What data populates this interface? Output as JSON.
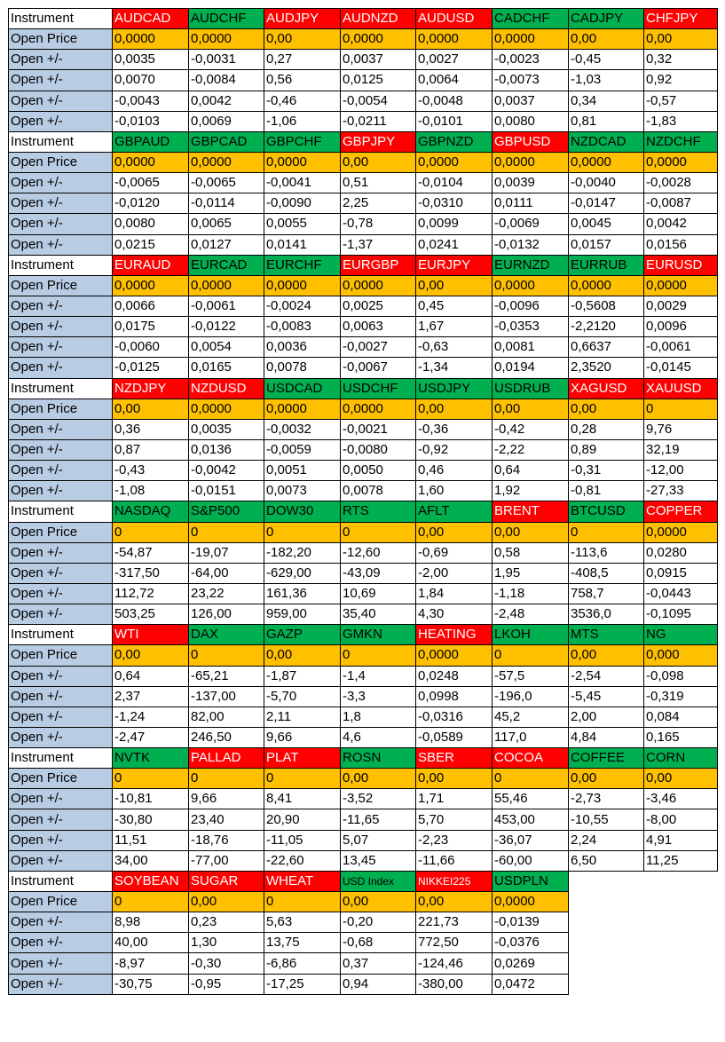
{
  "colors": {
    "label_bg": "#b8cce4",
    "open_price_bg": "#ffc000",
    "green": "#00b050",
    "red": "#ff0000",
    "white": "#ffffff"
  },
  "blocks": [
    {
      "instrument_label": "Instrument",
      "symbols": [
        {
          "name": "AUDCAD",
          "color": "red"
        },
        {
          "name": "AUDCHF",
          "color": "green"
        },
        {
          "name": "AUDJPY",
          "color": "red"
        },
        {
          "name": "AUDNZD",
          "color": "red"
        },
        {
          "name": "AUDUSD",
          "color": "red"
        },
        {
          "name": "CADCHF",
          "color": "green"
        },
        {
          "name": "CADJPY",
          "color": "green"
        },
        {
          "name": "CHFJPY",
          "color": "red"
        }
      ],
      "open_price_label": "Open Price",
      "open_price": [
        "0,0000",
        "0,0000",
        "0,00",
        "0,0000",
        "0,0000",
        "0,0000",
        "0,00",
        "0,00"
      ],
      "delta_label": "Open +/-",
      "deltas": [
        [
          "0,0035",
          "-0,0031",
          "0,27",
          "0,0037",
          "0,0027",
          "-0,0023",
          "-0,45",
          "0,32"
        ],
        [
          "0,0070",
          "-0,0084",
          "0,56",
          "0,0125",
          "0,0064",
          "-0,0073",
          "-1,03",
          "0,92"
        ],
        [
          "-0,0043",
          "0,0042",
          "-0,46",
          "-0,0054",
          "-0,0048",
          "0,0037",
          "0,34",
          "-0,57"
        ],
        [
          "-0,0103",
          "0,0069",
          "-1,06",
          "-0,0211",
          "-0,0101",
          "0,0080",
          "0,81",
          "-1,83"
        ]
      ]
    },
    {
      "instrument_label": "Instrument",
      "symbols": [
        {
          "name": "GBPAUD",
          "color": "green"
        },
        {
          "name": "GBPCAD",
          "color": "green"
        },
        {
          "name": "GBPCHF",
          "color": "green"
        },
        {
          "name": "GBPJPY",
          "color": "red"
        },
        {
          "name": "GBPNZD",
          "color": "green"
        },
        {
          "name": "GBPUSD",
          "color": "red"
        },
        {
          "name": "NZDCAD",
          "color": "green"
        },
        {
          "name": "NZDCHF",
          "color": "green"
        }
      ],
      "open_price_label": "Open Price",
      "open_price": [
        "0,0000",
        "0,0000",
        "0,0000",
        "0,00",
        "0,0000",
        "0,0000",
        "0,0000",
        "0,0000"
      ],
      "delta_label": "Open +/-",
      "deltas": [
        [
          "-0,0065",
          "-0,0065",
          "-0,0041",
          "0,51",
          "-0,0104",
          "0,0039",
          "-0,0040",
          "-0,0028"
        ],
        [
          "-0,0120",
          "-0,0114",
          "-0,0090",
          "2,25",
          "-0,0310",
          "0,0111",
          "-0,0147",
          "-0,0087"
        ],
        [
          "0,0080",
          "0,0065",
          "0,0055",
          "-0,78",
          "0,0099",
          "-0,0069",
          "0,0045",
          "0,0042"
        ],
        [
          "0,0215",
          "0,0127",
          "0,0141",
          "-1,37",
          "0,0241",
          "-0,0132",
          "0,0157",
          "0,0156"
        ]
      ]
    },
    {
      "instrument_label": "Instrument",
      "symbols": [
        {
          "name": "EURAUD",
          "color": "red"
        },
        {
          "name": "EURCAD",
          "color": "green"
        },
        {
          "name": "EURCHF",
          "color": "green"
        },
        {
          "name": "EURGBP",
          "color": "red"
        },
        {
          "name": "EURJPY",
          "color": "red"
        },
        {
          "name": "EURNZD",
          "color": "green"
        },
        {
          "name": "EURRUB",
          "color": "green"
        },
        {
          "name": "EURUSD",
          "color": "red"
        }
      ],
      "open_price_label": "Open Price",
      "open_price": [
        "0,0000",
        "0,0000",
        "0,0000",
        "0,0000",
        "0,00",
        "0,0000",
        "0,0000",
        "0,0000"
      ],
      "delta_label": "Open +/-",
      "deltas": [
        [
          "0,0066",
          "-0,0061",
          "-0,0024",
          "0,0025",
          "0,45",
          "-0,0096",
          "-0,5608",
          "0,0029"
        ],
        [
          "0,0175",
          "-0,0122",
          "-0,0083",
          "0,0063",
          "1,67",
          "-0,0353",
          "-2,2120",
          "0,0096"
        ],
        [
          "-0,0060",
          "0,0054",
          "0,0036",
          "-0,0027",
          "-0,63",
          "0,0081",
          "0,6637",
          "-0,0061"
        ],
        [
          "-0,0125",
          "0,0165",
          "0,0078",
          "-0,0067",
          "-1,34",
          "0,0194",
          "2,3520",
          "-0,0145"
        ]
      ]
    },
    {
      "instrument_label": "Instrument",
      "symbols": [
        {
          "name": "NZDJPY",
          "color": "red"
        },
        {
          "name": "NZDUSD",
          "color": "red"
        },
        {
          "name": "USDCAD",
          "color": "green"
        },
        {
          "name": "USDCHF",
          "color": "green"
        },
        {
          "name": "USDJPY",
          "color": "green"
        },
        {
          "name": "USDRUB",
          "color": "green"
        },
        {
          "name": "XAGUSD",
          "color": "red"
        },
        {
          "name": "XAUUSD",
          "color": "red"
        }
      ],
      "open_price_label": "Open Price",
      "open_price": [
        "0,00",
        "0,0000",
        "0,0000",
        "0,0000",
        "0,00",
        "0,00",
        "0,00",
        "0"
      ],
      "delta_label": "Open +/-",
      "deltas": [
        [
          "0,36",
          "0,0035",
          "-0,0032",
          "-0,0021",
          "-0,36",
          "-0,42",
          "0,28",
          "9,76"
        ],
        [
          "0,87",
          "0,0136",
          "-0,0059",
          "-0,0080",
          "-0,92",
          "-2,22",
          "0,89",
          "32,19"
        ],
        [
          "-0,43",
          "-0,0042",
          "0,0051",
          "0,0050",
          "0,46",
          "0,64",
          "-0,31",
          "-12,00"
        ],
        [
          "-1,08",
          "-0,0151",
          "0,0073",
          "0,0078",
          "1,60",
          "1,92",
          "-0,81",
          "-27,33"
        ]
      ]
    },
    {
      "instrument_label": "Instrument",
      "symbols": [
        {
          "name": "NASDAQ",
          "color": "green"
        },
        {
          "name": "S&P500",
          "color": "green"
        },
        {
          "name": "DOW30",
          "color": "green"
        },
        {
          "name": "RTS",
          "color": "green"
        },
        {
          "name": "AFLT",
          "color": "green"
        },
        {
          "name": "BRENT",
          "color": "red"
        },
        {
          "name": "BTCUSD",
          "color": "green"
        },
        {
          "name": "COPPER",
          "color": "red"
        }
      ],
      "open_price_label": "Open Price",
      "open_price": [
        "0",
        "0",
        "0",
        "0",
        "0,00",
        "0,00",
        "0",
        "0,0000"
      ],
      "delta_label": "Open +/-",
      "deltas": [
        [
          "-54,87",
          "-19,07",
          "-182,20",
          "-12,60",
          "-0,69",
          "0,58",
          "-113,6",
          "0,0280"
        ],
        [
          "-317,50",
          "-64,00",
          "-629,00",
          "-43,09",
          "-2,00",
          "1,95",
          "-408,5",
          "0,0915"
        ],
        [
          "112,72",
          "23,22",
          "161,36",
          "10,69",
          "1,84",
          "-1,18",
          "758,7",
          "-0,0443"
        ],
        [
          "503,25",
          "126,00",
          "959,00",
          "35,40",
          "4,30",
          "-2,48",
          "3536,0",
          "-0,1095"
        ]
      ]
    },
    {
      "instrument_label": "Instrument",
      "symbols": [
        {
          "name": "WTI",
          "color": "red"
        },
        {
          "name": "DAX",
          "color": "green"
        },
        {
          "name": "GAZP",
          "color": "green"
        },
        {
          "name": "GMKN",
          "color": "green"
        },
        {
          "name": "HEATING",
          "color": "red"
        },
        {
          "name": "LKOH",
          "color": "green"
        },
        {
          "name": "MTS",
          "color": "green"
        },
        {
          "name": "NG",
          "color": "green"
        }
      ],
      "open_price_label": "Open Price",
      "open_price": [
        "0,00",
        "0",
        "0,00",
        "0",
        "0,0000",
        "0",
        "0,00",
        "0,000"
      ],
      "delta_label": "Open +/-",
      "deltas": [
        [
          "0,64",
          "-65,21",
          "-1,87",
          "-1,4",
          "0,0248",
          "-57,5",
          "-2,54",
          "-0,098"
        ],
        [
          "2,37",
          "-137,00",
          "-5,70",
          "-3,3",
          "0,0998",
          "-196,0",
          "-5,45",
          "-0,319"
        ],
        [
          "-1,24",
          "82,00",
          "2,11",
          "1,8",
          "-0,0316",
          "45,2",
          "2,00",
          "0,084"
        ],
        [
          "-2,47",
          "246,50",
          "9,66",
          "4,6",
          "-0,0589",
          "117,0",
          "4,84",
          "0,165"
        ]
      ]
    },
    {
      "instrument_label": "Instrument",
      "symbols": [
        {
          "name": "NVTK",
          "color": "green"
        },
        {
          "name": "PALLAD",
          "color": "red"
        },
        {
          "name": "PLAT",
          "color": "red"
        },
        {
          "name": "ROSN",
          "color": "green"
        },
        {
          "name": "SBER",
          "color": "red"
        },
        {
          "name": "COCOA",
          "color": "red"
        },
        {
          "name": "COFFEE",
          "color": "green"
        },
        {
          "name": "CORN",
          "color": "green"
        }
      ],
      "open_price_label": "Open Price",
      "open_price": [
        "0",
        "0",
        "0",
        "0,00",
        "0,00",
        "0",
        "0,00",
        "0,00"
      ],
      "delta_label": "Open +/-",
      "deltas": [
        [
          "-10,81",
          "9,66",
          "8,41",
          "-3,52",
          "1,71",
          "55,46",
          "-2,73",
          "-3,46"
        ],
        [
          "-30,80",
          "23,40",
          "20,90",
          "-11,65",
          "5,70",
          "453,00",
          "-10,55",
          "-8,00"
        ],
        [
          "11,51",
          "-18,76",
          "-11,05",
          "5,07",
          "-2,23",
          "-36,07",
          "2,24",
          "4,91"
        ],
        [
          "34,00",
          "-77,00",
          "-22,60",
          "13,45",
          "-11,66",
          "-60,00",
          "6,50",
          "11,25"
        ]
      ]
    },
    {
      "instrument_label": "Instrument",
      "symbols": [
        {
          "name": "SOYBEAN",
          "color": "red"
        },
        {
          "name": "SUGAR",
          "color": "red"
        },
        {
          "name": "WHEAT",
          "color": "red"
        },
        {
          "name": "USD Index",
          "color": "green",
          "small": true
        },
        {
          "name": "NIKKEI225",
          "color": "red",
          "small": true
        },
        {
          "name": "USDPLN",
          "color": "green"
        }
      ],
      "open_price_label": "Open Price",
      "open_price": [
        "0",
        "0,00",
        "0",
        "0,00",
        "0,00",
        "0,0000"
      ],
      "delta_label": "Open +/-",
      "deltas": [
        [
          "8,98",
          "0,23",
          "5,63",
          "-0,20",
          "221,73",
          "-0,0139"
        ],
        [
          "40,00",
          "1,30",
          "13,75",
          "-0,68",
          "772,50",
          "-0,0376"
        ],
        [
          "-8,97",
          "-0,30",
          "-6,86",
          "0,37",
          "-124,46",
          "0,0269"
        ],
        [
          "-30,75",
          "-0,95",
          "-17,25",
          "0,94",
          "-380,00",
          "0,0472"
        ]
      ]
    }
  ]
}
